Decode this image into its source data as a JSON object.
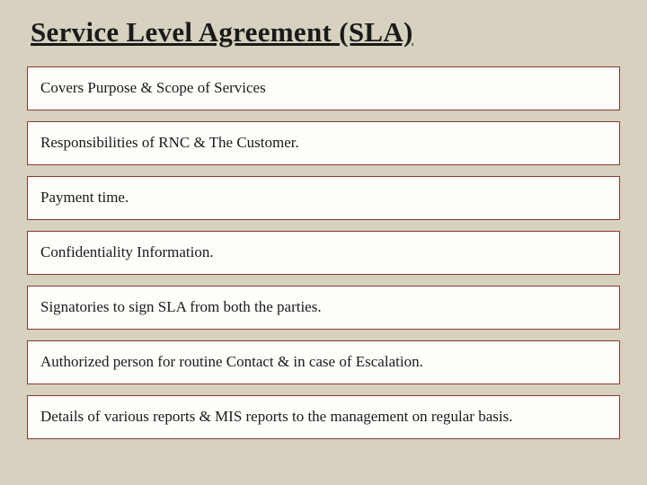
{
  "slide": {
    "title": "Service Level Agreement (SLA)",
    "background_color": "#d6d2bf",
    "title_fontsize": 31,
    "title_color": "#1a1a1a",
    "items": [
      {
        "text": "Covers Purpose & Scope of Services"
      },
      {
        "text": "Responsibilities of RNC & The Customer."
      },
      {
        "text": "Payment time."
      },
      {
        "text": "Confidentiality Information."
      },
      {
        "text": "Signatories to sign SLA from both the parties."
      },
      {
        "text": "Authorized person for routine Contact & in case of Escalation."
      },
      {
        "text": "Details of various reports & MIS reports to the management on regular basis."
      }
    ],
    "item_style": {
      "background_color": "#fdfdfa",
      "border_color": "#8c3a2f",
      "font_size": 17,
      "text_color": "#1a1a1a"
    }
  }
}
